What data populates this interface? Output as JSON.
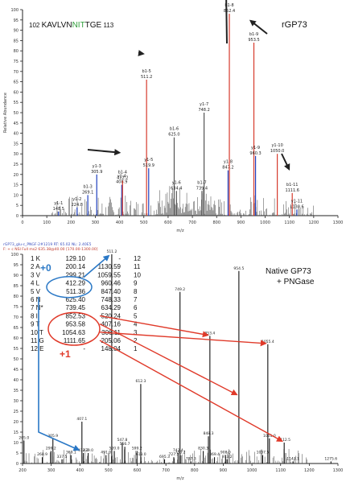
{
  "chart_data": [
    {
      "type": "bar",
      "panel": "top",
      "label": "rGP73",
      "sequence": {
        "start": "102",
        "pre": "KAVLVN",
        "motif": "NIT",
        "post": "TGE",
        "end": "113"
      },
      "xlabel": "m/z",
      "ylabel": "Relative Abundance",
      "xlim": [
        0,
        1300
      ],
      "ylim": [
        0,
        100
      ],
      "x_ticks": [
        0,
        100,
        200,
        300,
        400,
        500,
        600,
        700,
        800,
        900,
        1000,
        1100,
        1200,
        1300
      ],
      "y_ticks": [
        0,
        5,
        10,
        15,
        20,
        25,
        30,
        35,
        40,
        45,
        50,
        55,
        60,
        65,
        70,
        75,
        80,
        85,
        90,
        95,
        100
      ],
      "peaks": [
        {
          "mz": 148.5,
          "rel": 2,
          "label": "y1-1",
          "value": "148.5",
          "color": "#1f3fbf"
        },
        {
          "mz": 224.8,
          "rel": 4,
          "label": "y1-2",
          "value": "224.8",
          "color": "#1f3fbf"
        },
        {
          "mz": 269.1,
          "rel": 10,
          "label": "b1-3",
          "value": "269.1",
          "color": "#1f3fbf"
        },
        {
          "mz": 305.9,
          "rel": 20,
          "label": "y1-3",
          "value": "305.9",
          "color": "#1f3fbf"
        },
        {
          "mz": 408.9,
          "rel": 15,
          "label": "y1-4",
          "value": "408.9",
          "color": "#1f3fbf"
        },
        {
          "mz": 412.2,
          "rel": 17,
          "label": "b1-4",
          "value": "412.2",
          "color": "#d63a2c"
        },
        {
          "mz": 511.2,
          "rel": 66,
          "label": "b1-5",
          "value": "511.2",
          "color": "#d63a2c"
        },
        {
          "mz": 519.9,
          "rel": 23,
          "label": "y1-5",
          "value": "519.9",
          "color": "#1f3fbf"
        },
        {
          "mz": 625.0,
          "rel": 38,
          "label": "b1-6",
          "value": "625.0",
          "color": "#555555"
        },
        {
          "mz": 634.4,
          "rel": 12,
          "label": "y1-6",
          "value": "634.4",
          "color": "#555555"
        },
        {
          "mz": 739.4,
          "rel": 12,
          "label": "b1-7",
          "value": "739.4",
          "color": "#555555"
        },
        {
          "mz": 748.2,
          "rel": 50,
          "label": "y1-7",
          "value": "748.2",
          "color": "#555555"
        },
        {
          "mz": 847.2,
          "rel": 22,
          "label": "y1-8",
          "value": "847.2",
          "color": "#1f3fbf"
        },
        {
          "mz": 852.4,
          "rel": 98,
          "label": "b1-8",
          "value": "852.4",
          "color": "#d63a2c"
        },
        {
          "mz": 953.5,
          "rel": 84,
          "label": "b1-9",
          "value": "953.5",
          "color": "#d63a2c"
        },
        {
          "mz": 960.3,
          "rel": 29,
          "label": "y1-9",
          "value": "960.3",
          "color": "#1f3fbf"
        },
        {
          "mz": 1050.0,
          "rel": 30,
          "label": "y1-10",
          "value": "1050.0",
          "color": "#d63a2c"
        },
        {
          "mz": 1111.6,
          "rel": 11,
          "label": "b1-11",
          "value": "1111.6",
          "color": "#d63a2c"
        },
        {
          "mz": 1130.6,
          "rel": 3,
          "label": "y1-11",
          "value": "1130.6",
          "color": "#1f3fbf"
        }
      ]
    },
    {
      "type": "bar",
      "panel": "bottom",
      "label_line1": "Native GP73",
      "label_line2": "+ PNGase",
      "header_line1": "rGP73_glu-c_PNGF-2#1219  RT: 65.02  NL: 2.40E5",
      "header_line2": "F: + c NSI Full ms2 635.38@40.00 [170.00-1300.00]",
      "xlabel": "m/z",
      "xlim": [
        200,
        1300
      ],
      "ylim": [
        0,
        100
      ],
      "x_ticks": [
        200,
        300,
        400,
        500,
        600,
        700,
        800,
        900,
        1000,
        1100,
        1200,
        1300
      ],
      "y_ticks": [
        0,
        5,
        10,
        15,
        20,
        25,
        30,
        35,
        40,
        45,
        50,
        55,
        60,
        65,
        70,
        75,
        80,
        85,
        90,
        95,
        100
      ],
      "peaks": [
        {
          "mz": 205.0,
          "rel": 11,
          "label": "205.0"
        },
        {
          "mz": 268.9,
          "rel": 3,
          "label": "268.9"
        },
        {
          "mz": 299.2,
          "rel": 6,
          "label": "299.2"
        },
        {
          "mz": 305.9,
          "rel": 12,
          "label": "305.9"
        },
        {
          "mz": 337.5,
          "rel": 2,
          "label": "337.5"
        },
        {
          "mz": 369.1,
          "rel": 4,
          "label": "369.1"
        },
        {
          "mz": 407.1,
          "rel": 20,
          "label": "407.1"
        },
        {
          "mz": 412.2,
          "rel": 5,
          "label": "412.2"
        },
        {
          "mz": 429.0,
          "rel": 5,
          "label": "429.0"
        },
        {
          "mz": 491.0,
          "rel": 4,
          "label": "491.0"
        },
        {
          "mz": 511.2,
          "rel": 100,
          "label": "511.2"
        },
        {
          "mz": 520.0,
          "rel": 6,
          "label": "520.0"
        },
        {
          "mz": 547.8,
          "rel": 10,
          "label": "547.8"
        },
        {
          "mz": 556.7,
          "rel": 8,
          "label": "556.7"
        },
        {
          "mz": 599.2,
          "rel": 6,
          "label": "599.2"
        },
        {
          "mz": 612.3,
          "rel": 38,
          "label": "612.3"
        },
        {
          "mz": 613.0,
          "rel": 3,
          "label": "613.0"
        },
        {
          "mz": 695.3,
          "rel": 2,
          "label": "695.3"
        },
        {
          "mz": 727.5,
          "rel": 3,
          "label": "727.5"
        },
        {
          "mz": 742.4,
          "rel": 5,
          "label": "742.4"
        },
        {
          "mz": 749.2,
          "rel": 82,
          "label": "749.2"
        },
        {
          "mz": 750.2,
          "rel": 4,
          "label": "750.2"
        },
        {
          "mz": 787.3,
          "rel": 1,
          "label": "787.3"
        },
        {
          "mz": 830.3,
          "rel": 6,
          "label": "830.3"
        },
        {
          "mz": 848.3,
          "rel": 13,
          "label": "848.3"
        },
        {
          "mz": 853.4,
          "rel": 61,
          "label": "853.4"
        },
        {
          "mz": 869.4,
          "rel": 3,
          "label": "869.4"
        },
        {
          "mz": 908.0,
          "rel": 4,
          "label": "908.0"
        },
        {
          "mz": 913.2,
          "rel": 2,
          "label": "913.2"
        },
        {
          "mz": 954.5,
          "rel": 92,
          "label": "954.5"
        },
        {
          "mz": 1037.5,
          "rel": 4,
          "label": "1037.5"
        },
        {
          "mz": 1055.4,
          "rel": 57,
          "label": "1055.4"
        },
        {
          "mz": 1061.0,
          "rel": 12,
          "label": "1061.0"
        },
        {
          "mz": 1112.5,
          "rel": 10,
          "label": "1112.5"
        },
        {
          "mz": 1143.1,
          "rel": 1,
          "label": "1143.1"
        },
        {
          "mz": 1275.6,
          "rel": 1,
          "label": "1275.6"
        }
      ],
      "fragment_table": [
        {
          "b": "1 K",
          "b_mz": "129.10",
          "y_mz": "-",
          "idx": "12"
        },
        {
          "b": "2 A",
          "b_mz": "200.14",
          "y_mz": "1130.59",
          "idx": "11"
        },
        {
          "b": "3 V",
          "b_mz": "299.21",
          "y_mz": "1059.55",
          "idx": "10"
        },
        {
          "b": "4 L",
          "b_mz": "412.29",
          "y_mz": "960.46",
          "idx": "9"
        },
        {
          "b": "5 V",
          "b_mz": "511.36",
          "y_mz": "847.40",
          "idx": "8"
        },
        {
          "b": "6 N",
          "b_mz": "625.40",
          "y_mz": "748.33",
          "idx": "7"
        },
        {
          "b": "7 N*",
          "b_mz": "739.45",
          "y_mz": "634.29",
          "idx": "6"
        },
        {
          "b": "8 I",
          "b_mz": "852.53",
          "y_mz": "520.24",
          "idx": "5"
        },
        {
          "b": "9 T",
          "b_mz": "953.58",
          "y_mz": "407.16",
          "idx": "4"
        },
        {
          "b": "10 T",
          "b_mz": "1054.63",
          "y_mz": "306.11",
          "idx": "3"
        },
        {
          "b": "11 G",
          "b_mz": "1111.65",
          "y_mz": "205.06",
          "idx": "2"
        },
        {
          "b": "12 E",
          "b_mz": "-",
          "y_mz": "148.04",
          "idx": "1"
        }
      ],
      "annotation_plus0": "+0",
      "annotation_plus1": "+1"
    }
  ],
  "colors": {
    "b_ion_red": "#d63a2c",
    "y_ion_blue": "#1f3fbf",
    "unassigned": "#555555",
    "motif_green": "#2f9e3a",
    "blue_annot": "#2a78c6",
    "red_annot": "#e03a2a",
    "axis": "#222222"
  }
}
